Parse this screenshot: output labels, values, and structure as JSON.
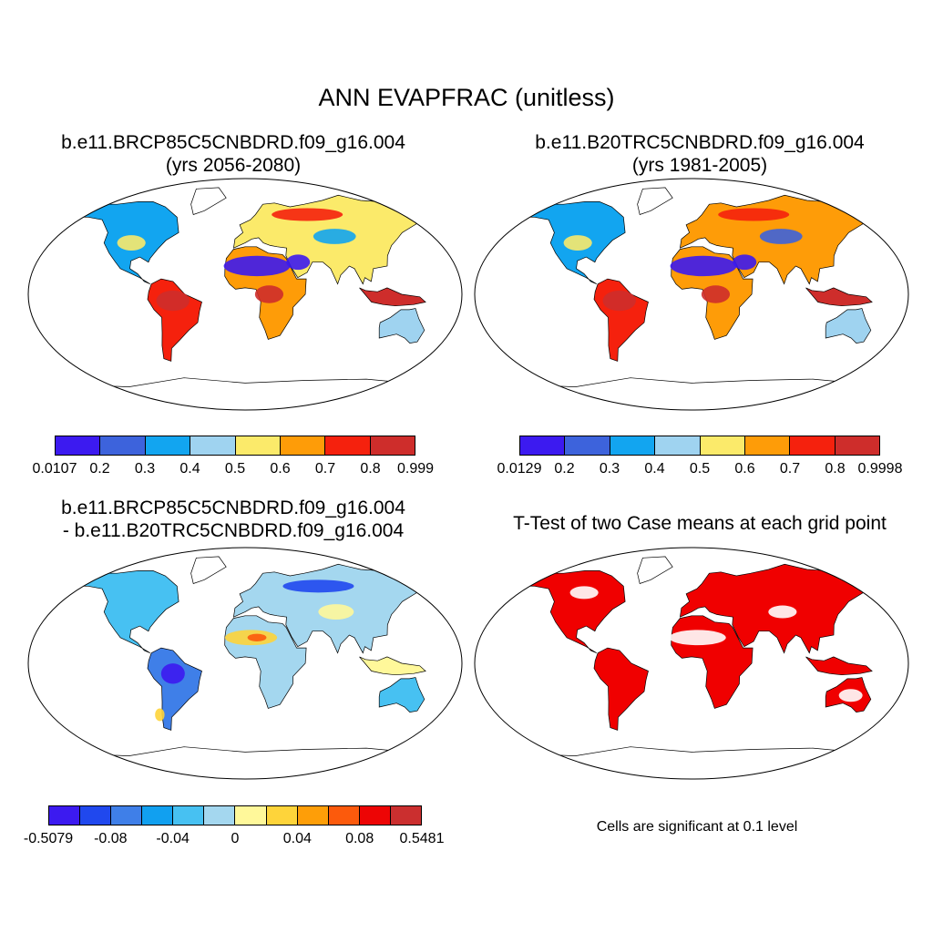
{
  "main_title": "ANN EVAPFRAC (unitless)",
  "panels": {
    "p1": {
      "title_line1": "b.e11.BRCP85C5CNBDRD.f09_g16.004",
      "title_line2": "(yrs 2056-2080)"
    },
    "p2": {
      "title_line1": "b.e11.B20TRC5CNBDRD.f09_g16.004",
      "title_line2": "(yrs 1981-2005)"
    },
    "p3": {
      "title_line1": "b.e11.BRCP85C5CNBDRD.f09_g16.004",
      "title_line2": "- b.e11.B20TRC5CNBDRD.f09_g16.004"
    },
    "p4": {
      "title_line1": "T-Test of two Case means at each grid point"
    }
  },
  "colorbars": {
    "cb1": {
      "colors": [
        "#3c1af0",
        "#3d63dc",
        "#12a5f0",
        "#9fd3f0",
        "#fbea6a",
        "#fe9c08",
        "#f5210d",
        "#ce2d2b"
      ],
      "labels": [
        "0.0107",
        "0.2",
        "0.3",
        "0.4",
        "0.5",
        "0.6",
        "0.7",
        "0.8",
        "0.999"
      ]
    },
    "cb2": {
      "colors": [
        "#3c1af0",
        "#3d63dc",
        "#12a5f0",
        "#9fd3f0",
        "#fbea6a",
        "#fe9c08",
        "#f5210d",
        "#ce2d2b"
      ],
      "labels": [
        "0.0129",
        "0.2",
        "0.3",
        "0.4",
        "0.5",
        "0.6",
        "0.7",
        "0.8",
        "0.9998"
      ]
    },
    "cb3": {
      "colors": [
        "#3c1af0",
        "#2048ee",
        "#3f7fe8",
        "#11a0f0",
        "#47c1f2",
        "#a4d7ef",
        "#fff89a",
        "#fed43a",
        "#fe9e08",
        "#fc5a0c",
        "#ed0505",
        "#cb2f2f"
      ],
      "labels": [
        "-0.5079",
        "-0.08",
        "-0.04",
        "0",
        "0.04",
        "0.08",
        "0.5481"
      ]
    }
  },
  "significance_note": "Cells are significant at 0.1 level",
  "map_colors": {
    "ocean": "#ffffff",
    "coast": "#000000",
    "significant": "#f00000"
  }
}
